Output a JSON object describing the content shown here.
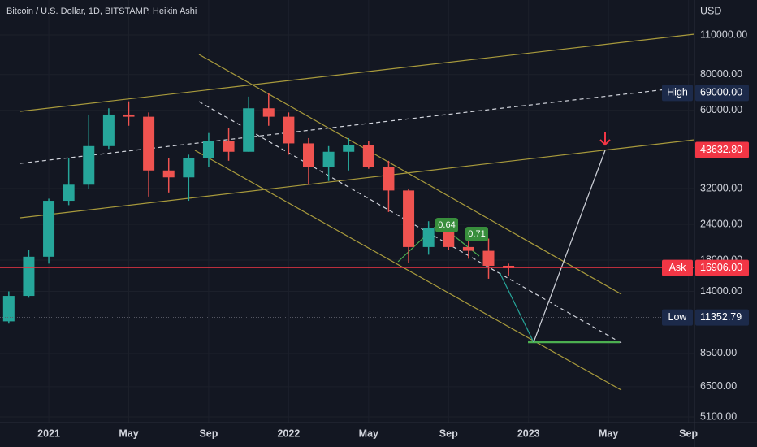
{
  "chart_data": {
    "type": "candlestick",
    "title": "Bitcoin / U.S. Dollar, 1D, BITSTAMP, Heikin Ashi",
    "y_axis_label": "USD",
    "log_scale": true,
    "x": [
      -2,
      -1,
      0,
      1,
      2,
      3,
      4,
      5,
      6,
      7,
      8,
      9,
      10,
      11,
      12,
      13,
      14,
      15,
      16,
      17,
      18,
      19,
      20,
      21,
      22,
      23
    ],
    "open": [
      11000,
      13500,
      18500,
      29000,
      33000,
      45000,
      58000,
      57000,
      37000,
      35000,
      41000,
      47000,
      43000,
      61000,
      57000,
      46000,
      38000,
      43000,
      45500,
      38000,
      31500,
      20000,
      23300,
      20000,
      19400,
      17200
    ],
    "high": [
      14000,
      19500,
      29500,
      41000,
      58000,
      61000,
      64500,
      59000,
      41000,
      42000,
      50000,
      52000,
      67000,
      69000,
      59000,
      48000,
      45000,
      48000,
      47000,
      40000,
      32000,
      24600,
      25200,
      22500,
      21400,
      17500
    ],
    "low": [
      10800,
      13300,
      17500,
      28000,
      32000,
      44000,
      53000,
      30000,
      31000,
      29000,
      38000,
      40000,
      43000,
      53000,
      42000,
      33000,
      34000,
      37000,
      37500,
      26500,
      17600,
      18800,
      19600,
      18200,
      15500,
      15800
    ],
    "close": [
      13500,
      18500,
      29000,
      33000,
      45000,
      58000,
      57000,
      37000,
      35000,
      41000,
      47000,
      43000,
      61000,
      57000,
      46000,
      38000,
      43000,
      45500,
      38000,
      31500,
      20000,
      23300,
      20000,
      19400,
      17200,
      16906
    ],
    "up_color": "#26a69a",
    "down_color": "#ef5350",
    "xlim": [
      -2.44,
      32.3
    ],
    "xticks": [
      {
        "value": 0,
        "label": "2021"
      },
      {
        "value": 4,
        "label": "May"
      },
      {
        "value": 8,
        "label": "Sep"
      },
      {
        "value": 12,
        "label": "2022"
      },
      {
        "value": 16,
        "label": "May"
      },
      {
        "value": 20,
        "label": "Sep"
      },
      {
        "value": 24,
        "label": "2023"
      },
      {
        "value": 28,
        "label": "May"
      },
      {
        "value": 32,
        "label": "Sep"
      }
    ],
    "ylim": [
      4873,
      145700
    ],
    "yticks": [
      {
        "value": 110000,
        "label": "110000.00"
      },
      {
        "value": 80000,
        "label": "80000.00"
      },
      {
        "value": 60000,
        "label": "60000.00"
      },
      {
        "value": 32000,
        "label": "32000.00"
      },
      {
        "value": 24000,
        "label": "24000.00"
      },
      {
        "value": 18000,
        "label": "18000.00"
      },
      {
        "value": 14000,
        "label": "14000.00"
      },
      {
        "value": 8500,
        "label": "8500.00"
      },
      {
        "value": 6500,
        "label": "6500.00"
      },
      {
        "value": 5100,
        "label": "5100.00"
      }
    ],
    "price_lines": [
      {
        "label": "High",
        "value": 69000,
        "value_label": "69000.00",
        "color": "#1c2a4a",
        "line": "#5d606b"
      },
      {
        "label": "Ask",
        "value": 16906,
        "value_label": "16906.00",
        "color": "#f23645",
        "line": "#f23645"
      },
      {
        "label": "Low",
        "value": 11352.79,
        "value_label": "11352.79",
        "color": "#1c2a4a",
        "line": "#5d606b"
      }
    ],
    "target": {
      "value": 43632.8,
      "value_label": "43632.80",
      "color": "#f23645"
    },
    "annotations": [
      "0.64",
      "0.71"
    ]
  }
}
